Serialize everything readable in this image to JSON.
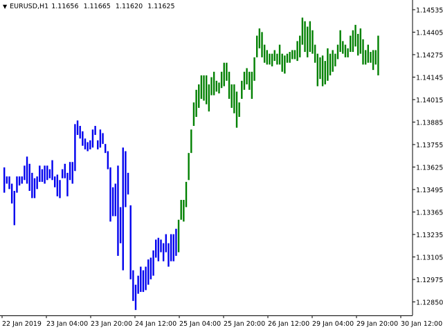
{
  "chart_data": {
    "type": "bar",
    "title": "EURUSD,H1",
    "header_values": [
      "1.11656",
      "1.11665",
      "1.11620",
      "1.11625"
    ],
    "ylim": [
      1.1285,
      1.1459
    ],
    "y_ticks": [
      "1.14535",
      "1.14405",
      "1.14275",
      "1.14145",
      "1.14015",
      "1.13885",
      "1.13755",
      "1.13625",
      "1.13495",
      "1.13365",
      "1.13235",
      "1.13105",
      "1.12975",
      "1.12850"
    ],
    "x_ticks": [
      "22 Jan 2019",
      "23 Jan 04:00",
      "23 Jan 20:00",
      "24 Jan 12:00",
      "25 Jan 04:00",
      "25 Jan 20:00",
      "26 Jan 12:00",
      "29 Jan 04:00",
      "29 Jan 20:00",
      "30 Jan 12:00"
    ],
    "colors": {
      "down_phase": "#0000ee",
      "up_phase": "#008000",
      "axis": "#000000",
      "background": "#ffffff"
    },
    "series": [
      {
        "color": "#0000ee",
        "bars": [
          [
            1.1367,
            1.1353
          ],
          [
            1.1362,
            1.1358
          ],
          [
            1.1362,
            1.1355
          ],
          [
            1.1358,
            1.1347
          ],
          [
            1.1354,
            1.1335
          ],
          [
            1.1362,
            1.1353
          ],
          [
            1.1362,
            1.1357
          ],
          [
            1.1362,
            1.1358
          ],
          [
            1.1368,
            1.136
          ],
          [
            1.1373,
            1.1358
          ],
          [
            1.1369,
            1.1354
          ],
          [
            1.1364,
            1.135
          ],
          [
            1.1361,
            1.135
          ],
          [
            1.1362,
            1.1355
          ],
          [
            1.1368,
            1.1359
          ],
          [
            1.1366,
            1.1359
          ],
          [
            1.1368,
            1.1358
          ],
          [
            1.1368,
            1.136
          ],
          [
            1.1366,
            1.1361
          ],
          [
            1.1371,
            1.136
          ],
          [
            1.1362,
            1.1356
          ],
          [
            1.1363,
            1.1351
          ],
          [
            1.136,
            1.135
          ],
          [
            1.1366,
            1.1361
          ],
          [
            1.1369,
            1.1361
          ],
          [
            1.1364,
            1.1351
          ],
          [
            1.137,
            1.136
          ],
          [
            1.137,
            1.1358
          ],
          [
            1.1391,
            1.1365
          ],
          [
            1.1393,
            1.1385
          ],
          [
            1.139,
            1.1383
          ],
          [
            1.1387,
            1.1379
          ],
          [
            1.1383,
            1.1377
          ],
          [
            1.1381,
            1.1376
          ],
          [
            1.1382,
            1.1377
          ],
          [
            1.1388,
            1.1378
          ],
          [
            1.139,
            1.1385
          ],
          [
            1.1382,
            1.1377
          ],
          [
            1.1388,
            1.1378
          ],
          [
            1.1386,
            1.138
          ],
          [
            1.138,
            1.1375
          ],
          [
            1.1376,
            1.1366
          ],
          [
            1.1367,
            1.1337
          ],
          [
            1.1356,
            1.134
          ],
          [
            1.1358,
            1.134
          ],
          [
            1.1368,
            1.1318
          ],
          [
            1.1345,
            1.1325
          ],
          [
            1.1378,
            1.131
          ],
          [
            1.1376,
            1.1345
          ],
          [
            1.1364,
            1.1352
          ],
          [
            1.1346,
            1.1305
          ],
          [
            1.131,
            1.1293
          ],
          [
            1.1302,
            1.1288
          ],
          [
            1.1307,
            1.1297
          ],
          [
            1.1312,
            1.1298
          ],
          [
            1.131,
            1.1298
          ],
          [
            1.1312,
            1.1299
          ],
          [
            1.1316,
            1.1302
          ],
          [
            1.1317,
            1.1305
          ],
          [
            1.1321,
            1.1307
          ],
          [
            1.1327,
            1.1317
          ],
          [
            1.1328,
            1.1315
          ],
          [
            1.1327,
            1.132
          ],
          [
            1.1325,
            1.1315
          ],
          [
            1.133,
            1.132
          ],
          [
            1.1325,
            1.1312
          ],
          [
            1.133,
            1.1315
          ],
          [
            1.133,
            1.1315
          ],
          [
            1.1333,
            1.1318
          ]
        ]
      },
      {
        "color": "#008000",
        "bars": [
          [
            1.1338,
            1.132
          ],
          [
            1.1349,
            1.1338
          ],
          [
            1.1349,
            1.1337
          ],
          [
            1.1359,
            1.1345
          ],
          [
            1.1375,
            1.136
          ],
          [
            1.1388,
            1.1375
          ],
          [
            1.1403,
            1.139
          ],
          [
            1.141,
            1.1395
          ],
          [
            1.1413,
            1.14
          ],
          [
            1.1418,
            1.1405
          ],
          [
            1.1418,
            1.1404
          ],
          [
            1.1418,
            1.1402
          ],
          [
            1.1413,
            1.1398
          ],
          [
            1.1417,
            1.1407
          ],
          [
            1.142,
            1.1407
          ],
          [
            1.1415,
            1.1409
          ],
          [
            1.1414,
            1.1408
          ],
          [
            1.142,
            1.1411
          ],
          [
            1.1425,
            1.1412
          ],
          [
            1.1425,
            1.1415
          ],
          [
            1.142,
            1.1405
          ],
          [
            1.1413,
            1.14
          ],
          [
            1.1413,
            1.1397
          ],
          [
            1.1409,
            1.1389
          ],
          [
            1.1403,
            1.1395
          ],
          [
            1.1415,
            1.1405
          ],
          [
            1.142,
            1.141
          ],
          [
            1.1422,
            1.1413
          ],
          [
            1.142,
            1.141
          ],
          [
            1.142,
            1.1405
          ],
          [
            1.1428,
            1.1415
          ],
          [
            1.144,
            1.1428
          ],
          [
            1.1444,
            1.1433
          ],
          [
            1.1442,
            1.1428
          ],
          [
            1.1435,
            1.1425
          ],
          [
            1.1432,
            1.1424
          ],
          [
            1.143,
            1.1424
          ],
          [
            1.143,
            1.1423
          ],
          [
            1.1432,
            1.1426
          ],
          [
            1.143,
            1.1424
          ],
          [
            1.1435,
            1.1424
          ],
          [
            1.143,
            1.142
          ],
          [
            1.1429,
            1.1419
          ],
          [
            1.143,
            1.1425
          ],
          [
            1.1431,
            1.1425
          ],
          [
            1.1432,
            1.1427
          ],
          [
            1.1432,
            1.1427
          ],
          [
            1.1437,
            1.1426
          ],
          [
            1.144,
            1.1428
          ],
          [
            1.145,
            1.1435
          ],
          [
            1.1448,
            1.1431
          ],
          [
            1.1445,
            1.1428
          ],
          [
            1.1448,
            1.1431
          ],
          [
            1.1443,
            1.143
          ],
          [
            1.1435,
            1.1425
          ],
          [
            1.143,
            1.1412
          ],
          [
            1.1428,
            1.1416
          ],
          [
            1.1429,
            1.1412
          ],
          [
            1.1426,
            1.1413
          ],
          [
            1.1433,
            1.1415
          ],
          [
            1.143,
            1.1418
          ],
          [
            1.1432,
            1.142
          ],
          [
            1.143,
            1.1423
          ],
          [
            1.1435,
            1.1427
          ],
          [
            1.1443,
            1.1431
          ],
          [
            1.1437,
            1.143
          ],
          [
            1.1435,
            1.1428
          ],
          [
            1.1433,
            1.1428
          ],
          [
            1.144,
            1.1431
          ],
          [
            1.1443,
            1.1431
          ],
          [
            1.1446,
            1.1434
          ],
          [
            1.1441,
            1.1429
          ],
          [
            1.1444,
            1.143
          ],
          [
            1.1438,
            1.1424
          ],
          [
            1.1432,
            1.1424
          ],
          [
            1.1435,
            1.1425
          ],
          [
            1.1431,
            1.1425
          ],
          [
            1.1432,
            1.1421
          ],
          [
            1.1432,
            1.1424
          ],
          [
            1.144,
            1.1418
          ]
        ]
      }
    ]
  }
}
